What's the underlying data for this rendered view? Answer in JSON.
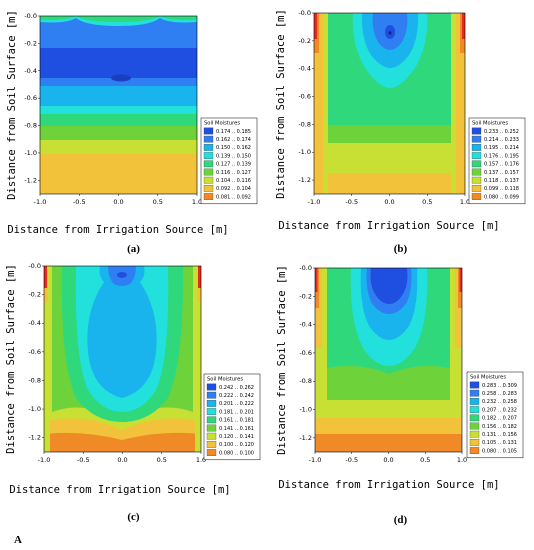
{
  "figure_label": "A",
  "chart_data": [
    {
      "type": "heatmap",
      "panel": "(a)",
      "xlabel": "Distance from Irrigation Source [m]",
      "ylabel": "Distance from Soil Surface [m]",
      "xlim": [
        -1.0,
        1.0
      ],
      "ylim": [
        -1.3,
        0.0
      ],
      "xticks": [
        "-1.0",
        "-0.5",
        "0.0",
        "0.5",
        "1.0"
      ],
      "yticks": [
        "-0.0",
        "-0.2",
        "-0.4",
        "-0.6",
        "-0.8",
        "-1.0",
        "-1.2"
      ],
      "legend_title": "Soil Moistures",
      "legend_position": "right",
      "levels": [
        {
          "label": "0.174 .. 0.185",
          "color": "#1e4fe0"
        },
        {
          "label": "0.162 .. 0.174",
          "color": "#2f7ff2"
        },
        {
          "label": "0.150 .. 0.162",
          "color": "#19b4ee"
        },
        {
          "label": "0.139 .. 0.150",
          "color": "#22e0dc"
        },
        {
          "label": "0.127 .. 0.139",
          "color": "#2fd87a"
        },
        {
          "label": "0.116 .. 0.127",
          "color": "#6ed23a"
        },
        {
          "label": "0.104 .. 0.116",
          "color": "#c8e033"
        },
        {
          "label": "0.092 .. 0.104",
          "color": "#f2c23a"
        },
        {
          "label": "0.081 .. 0.092",
          "color": "#f08a26"
        }
      ]
    },
    {
      "type": "heatmap",
      "panel": "(b)",
      "xlabel": "Distance from Irrigation Source [m]",
      "ylabel": "Distance from Soil Surface [m]",
      "xlim": [
        -1.0,
        1.0
      ],
      "ylim": [
        -1.3,
        0.0
      ],
      "xticks": [
        "-1.0",
        "-0.5",
        "0.0",
        "0.5",
        "1.0"
      ],
      "yticks": [
        "-0.0",
        "-0.2",
        "-0.4",
        "-0.6",
        "-0.8",
        "-1.0",
        "-1.2"
      ],
      "legend_title": "Soil Moistures",
      "legend_position": "right",
      "levels": [
        {
          "label": "0.233 .. 0.252",
          "color": "#1e4fe0"
        },
        {
          "label": "0.214 .. 0.233",
          "color": "#2f7ff2"
        },
        {
          "label": "0.195 .. 0.214",
          "color": "#19b4ee"
        },
        {
          "label": "0.176 .. 0.195",
          "color": "#22e0dc"
        },
        {
          "label": "0.157 .. 0.176",
          "color": "#2fd87a"
        },
        {
          "label": "0.137 .. 0.157",
          "color": "#6ed23a"
        },
        {
          "label": "0.118 .. 0.137",
          "color": "#c8e033"
        },
        {
          "label": "0.099 .. 0.118",
          "color": "#f2c23a"
        },
        {
          "label": "0.080 .. 0.099",
          "color": "#f08a26"
        }
      ]
    },
    {
      "type": "heatmap",
      "panel": "(c)",
      "xlabel": "Distance from Irrigation Source [m]",
      "ylabel": "Distance from Soil Surface [m]",
      "xlim": [
        -1.0,
        1.0
      ],
      "ylim": [
        -1.3,
        0.0
      ],
      "xticks": [
        "-1.0",
        "-0.5",
        "0.0",
        "0.5",
        "1.0"
      ],
      "yticks": [
        "-0.0",
        "-0.2",
        "-0.4",
        "-0.6",
        "-0.8",
        "-1.0",
        "-1.2"
      ],
      "legend_title": "Soil Moistures",
      "legend_position": "right",
      "levels": [
        {
          "label": "0.242 .. 0.262",
          "color": "#1e4fe0"
        },
        {
          "label": "0.222 .. 0.242",
          "color": "#2f7ff2"
        },
        {
          "label": "0.201 .. 0.222",
          "color": "#19b4ee"
        },
        {
          "label": "0.181 .. 0.201",
          "color": "#22e0dc"
        },
        {
          "label": "0.161 .. 0.181",
          "color": "#2fd87a"
        },
        {
          "label": "0.141 .. 0.161",
          "color": "#6ed23a"
        },
        {
          "label": "0.120 .. 0.141",
          "color": "#c8e033"
        },
        {
          "label": "0.100 .. 0.120",
          "color": "#f2c23a"
        },
        {
          "label": "0.080 .. 0.100",
          "color": "#f08a26"
        }
      ]
    },
    {
      "type": "heatmap",
      "panel": "(d)",
      "xlabel": "Distance from Irrigation Source [m]",
      "ylabel": "Distance from Soil Surface [m]",
      "xlim": [
        -1.0,
        1.0
      ],
      "ylim": [
        -1.3,
        0.0
      ],
      "xticks": [
        "-1.0",
        "-0.5",
        "0.0",
        "0.5",
        "1.0"
      ],
      "yticks": [
        "-0.0",
        "-0.2",
        "-0.4",
        "-0.6",
        "-0.8",
        "-1.0",
        "-1.2"
      ],
      "legend_title": "Soil Moistures",
      "legend_position": "right",
      "levels": [
        {
          "label": "0.283 .. 0.309",
          "color": "#1e4fe0"
        },
        {
          "label": "0.258 .. 0.283",
          "color": "#2f7ff2"
        },
        {
          "label": "0.232 .. 0.258",
          "color": "#19b4ee"
        },
        {
          "label": "0.207 .. 0.232",
          "color": "#22e0dc"
        },
        {
          "label": "0.182 .. 0.207",
          "color": "#2fd87a"
        },
        {
          "label": "0.156 .. 0.182",
          "color": "#6ed23a"
        },
        {
          "label": "0.131 .. 0.156",
          "color": "#c8e033"
        },
        {
          "label": "0.105 .. 0.131",
          "color": "#f2c23a"
        },
        {
          "label": "0.080 .. 0.105",
          "color": "#f08a26"
        }
      ]
    }
  ]
}
